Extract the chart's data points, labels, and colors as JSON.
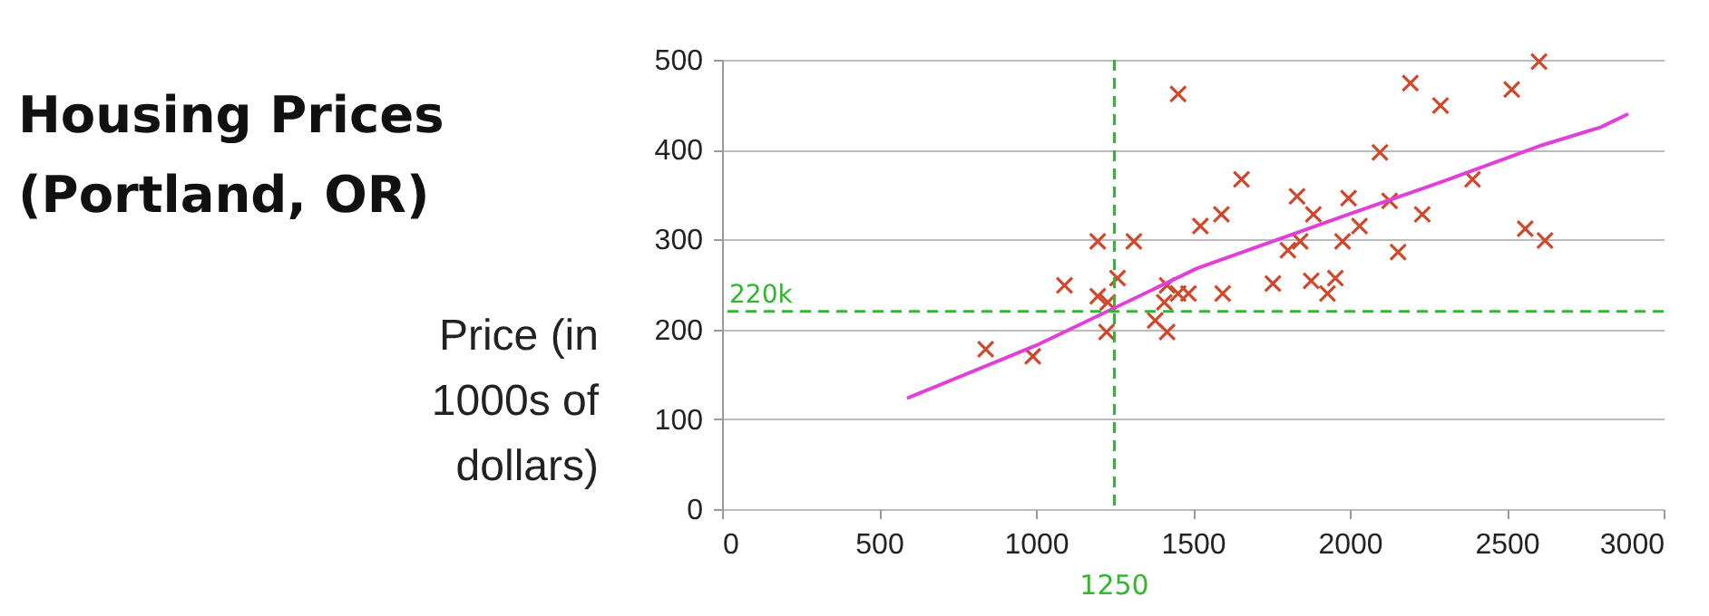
{
  "chart_data": {
    "type": "scatter",
    "title": "Housing Prices (Portland, OR)",
    "ylabel": "Price (in 1000s of dollars)",
    "xlim": [
      0,
      3000
    ],
    "xticks": [
      0,
      500,
      1000,
      1500,
      2000,
      2500,
      3000
    ],
    "ylim": [
      0,
      500
    ],
    "yticks": [
      0,
      100,
      200,
      300,
      400,
      500
    ],
    "grid": "y",
    "series": [
      {
        "color": "#d0472a",
        "marker": "cross",
        "x": [
          840,
          990,
          1091,
          1197,
          1312,
          1197,
          1229,
          1260,
          1225,
          1453,
          1380,
          1418,
          1418,
          1409,
          1453,
          1524,
          1591,
          1486,
          1595,
          1655,
          1755,
          1803,
          1842,
          1832,
          1884,
          1877,
          1929,
          1954,
          1977,
          1996,
          2031,
          2096,
          2127,
          2154,
          2193,
          2231,
          2289,
          2391,
          2516,
          2603,
          2559,
          2622
        ],
        "values": [
          178,
          170,
          249,
          298,
          298,
          237,
          230,
          257,
          197,
          462,
          210,
          197,
          249,
          230,
          240,
          315,
          328,
          240,
          240,
          367,
          251,
          288,
          298,
          348,
          328,
          254,
          240,
          257,
          298,
          346,
          315,
          397,
          343,
          286,
          474,
          328,
          449,
          367,
          467,
          498,
          312,
          299
        ]
      },
      {
        "type": "line",
        "color": "#e040d8",
        "line_style": "solid",
        "x": [
          594,
          1000,
          1514,
          1996,
          2300,
          2613,
          2800,
          2883
        ],
        "values": [
          124,
          182,
          268,
          328,
          365,
          405,
          425,
          439
        ]
      }
    ],
    "ref_lines": [
      {
        "axis": "x",
        "value": 1250,
        "label": "1250",
        "color": "#2eb82e",
        "line_style": "dashed"
      },
      {
        "axis": "y",
        "value": 220,
        "label": "220k",
        "color": "#2eb82e",
        "line_style": "dashed"
      }
    ]
  }
}
